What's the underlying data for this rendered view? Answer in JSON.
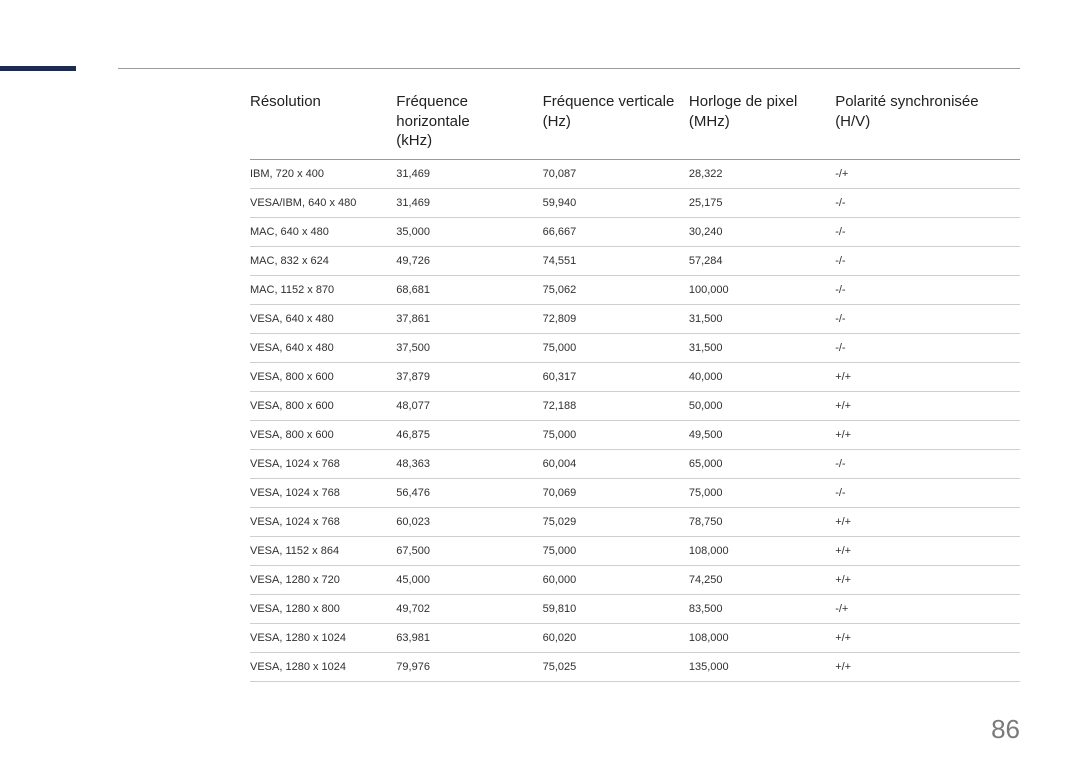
{
  "page": {
    "number": "86",
    "background_color": "#ffffff",
    "accent_color": "#1b2a4e",
    "rule_color": "#9a9a9a",
    "row_rule_color": "#cfcfcf",
    "header_font_size_pt": 11,
    "body_font_size_pt": 8,
    "text_color": "#222222",
    "page_num_color": "#7a7a7a"
  },
  "table": {
    "columns": [
      {
        "line1": "Résolution",
        "line2": ""
      },
      {
        "line1": "Fréquence horizontale",
        "line2": "(kHz)"
      },
      {
        "line1": "Fréquence verticale",
        "line2": "(Hz)"
      },
      {
        "line1": "Horloge de pixel",
        "line2": "(MHz)"
      },
      {
        "line1": "Polarité synchronisée",
        "line2": "(H/V)"
      }
    ],
    "rows": [
      [
        "IBM, 720 x 400",
        "31,469",
        "70,087",
        "28,322",
        "-/+"
      ],
      [
        "VESA/IBM, 640 x 480",
        "31,469",
        "59,940",
        "25,175",
        "-/-"
      ],
      [
        "MAC, 640 x 480",
        "35,000",
        "66,667",
        "30,240",
        "-/-"
      ],
      [
        "MAC, 832 x 624",
        "49,726",
        "74,551",
        "57,284",
        "-/-"
      ],
      [
        "MAC, 1152 x 870",
        "68,681",
        "75,062",
        "100,000",
        "-/-"
      ],
      [
        "VESA, 640 x 480",
        "37,861",
        "72,809",
        "31,500",
        "-/-"
      ],
      [
        "VESA, 640 x 480",
        "37,500",
        "75,000",
        "31,500",
        "-/-"
      ],
      [
        "VESA, 800 x 600",
        "37,879",
        "60,317",
        "40,000",
        "+/+"
      ],
      [
        "VESA, 800 x 600",
        "48,077",
        "72,188",
        "50,000",
        "+/+"
      ],
      [
        "VESA, 800 x 600",
        "46,875",
        "75,000",
        "49,500",
        "+/+"
      ],
      [
        "VESA, 1024 x 768",
        "48,363",
        "60,004",
        "65,000",
        "-/-"
      ],
      [
        "VESA, 1024 x 768",
        "56,476",
        "70,069",
        "75,000",
        "-/-"
      ],
      [
        "VESA, 1024 x 768",
        "60,023",
        "75,029",
        "78,750",
        "+/+"
      ],
      [
        "VESA, 1152 x 864",
        "67,500",
        "75,000",
        "108,000",
        "+/+"
      ],
      [
        "VESA, 1280 x 720",
        "45,000",
        "60,000",
        "74,250",
        "+/+"
      ],
      [
        "VESA, 1280 x 800",
        "49,702",
        "59,810",
        "83,500",
        "-/+"
      ],
      [
        "VESA, 1280 x 1024",
        "63,981",
        "60,020",
        "108,000",
        "+/+"
      ],
      [
        "VESA, 1280 x 1024",
        "79,976",
        "75,025",
        "135,000",
        "+/+"
      ]
    ]
  }
}
